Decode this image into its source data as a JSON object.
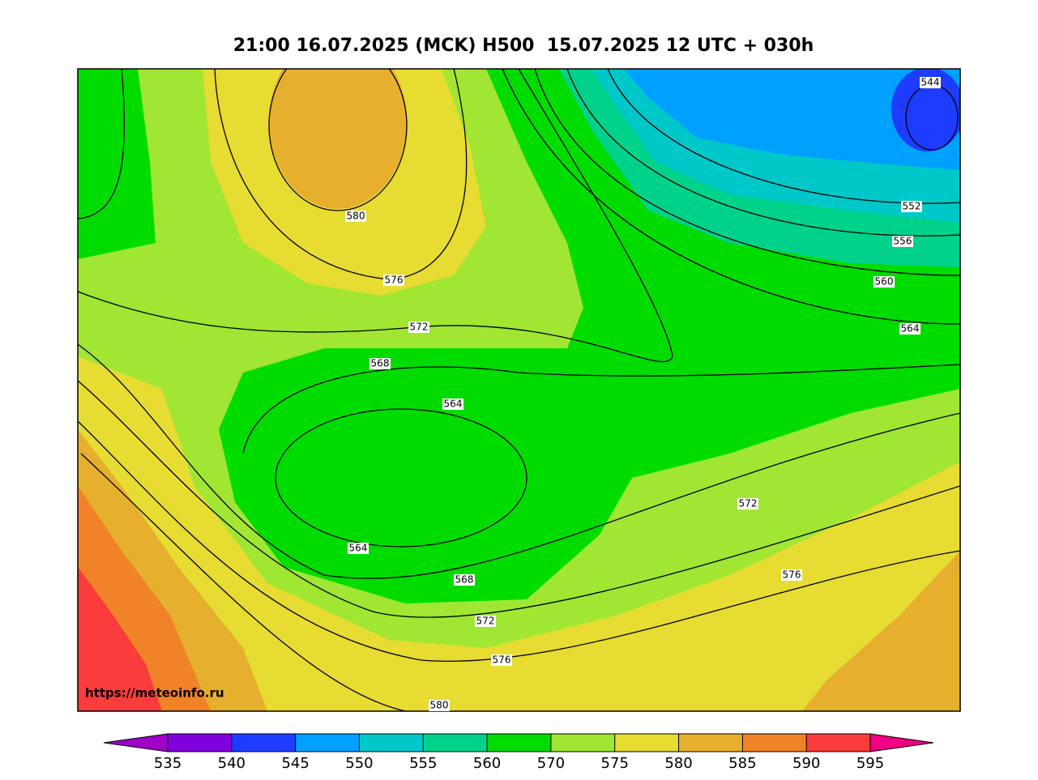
{
  "title": "21:00 16.07.2025 (MCK) H500  15.07.2025 12 UTC + 030h",
  "watermark": "https://meteoinfo.ru",
  "contour_labels": [
    580,
    576,
    572,
    568,
    564,
    564,
    568,
    572,
    576,
    580,
    544,
    552,
    556,
    560,
    564,
    572,
    576
  ],
  "colorbar": {
    "ticks": [
      535,
      540,
      545,
      550,
      555,
      560,
      570,
      575,
      580,
      585,
      590,
      595
    ],
    "colors": [
      "#8200dc",
      "#1e3cff",
      "#00a0ff",
      "#00c8c8",
      "#00d28c",
      "#00dc00",
      "#a0e632",
      "#e6dc32",
      "#e6af2d",
      "#f08228",
      "#fa3c3c"
    ],
    "extend_colors": [
      "#a000c8",
      "#f00082"
    ]
  }
}
